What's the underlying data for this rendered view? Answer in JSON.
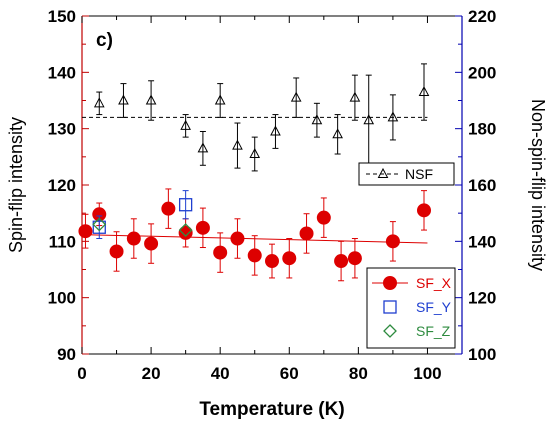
{
  "chart_data": {
    "type": "scatter",
    "panel_label": "c)",
    "xlabel": "Temperature (K)",
    "ylabel": "Spin-flip intensity",
    "y2label": "Non-spin-flip intensity",
    "xlim": [
      0,
      110
    ],
    "ylim": [
      90,
      150
    ],
    "y2lim": [
      100,
      220
    ],
    "xticks": [
      0,
      20,
      40,
      60,
      80,
      100
    ],
    "yticks": [
      90,
      100,
      110,
      120,
      130,
      140,
      150
    ],
    "y2ticks": [
      100,
      120,
      140,
      160,
      180,
      200,
      220
    ],
    "grid": false,
    "colors": {
      "left_axis": "#c00000",
      "right_axis": "#0000b0",
      "sf_x": "#dd0000",
      "sf_y": "#1f3fd0",
      "sf_z": "#2e8b3f",
      "nsf": "#000000",
      "frame": "#000000"
    },
    "series": [
      {
        "name": "NSF",
        "axis": "right",
        "marker": "triangle-open",
        "x": [
          5,
          12,
          20,
          30,
          35,
          40,
          45,
          50,
          56,
          62,
          68,
          74,
          79,
          83,
          90,
          99
        ],
        "y": [
          189,
          190,
          190,
          181,
          173,
          190,
          174,
          171,
          179,
          191,
          183,
          178,
          191,
          183,
          184,
          193
        ],
        "err": [
          4,
          6,
          7,
          4,
          6,
          6,
          8,
          6,
          6,
          7,
          6,
          7,
          8,
          16,
          8,
          10
        ]
      },
      {
        "name": "NSF fit",
        "axis": "right",
        "line": "dashed",
        "x": [
          0,
          100
        ],
        "y": [
          184,
          184
        ]
      },
      {
        "name": "SF_X",
        "axis": "left",
        "marker": "circle-filled",
        "x": [
          1,
          5,
          10,
          15,
          20,
          25,
          30,
          35,
          40,
          45,
          50,
          55,
          60,
          65,
          70,
          75,
          79,
          90,
          99
        ],
        "y": [
          111.8,
          114.8,
          108.2,
          110.5,
          109.6,
          115.8,
          111.5,
          112.4,
          108.0,
          110.5,
          107.5,
          106.5,
          107.0,
          111.4,
          114.2,
          106.5,
          107.0,
          110.0,
          115.5
        ],
        "err": [
          3,
          2,
          3.5,
          3.5,
          3.5,
          3.5,
          2.5,
          3.5,
          3.5,
          3.5,
          3.5,
          3,
          3.5,
          3.5,
          3.5,
          3.5,
          3.5,
          3.5,
          3.5
        ]
      },
      {
        "name": "SF_X fit",
        "axis": "left",
        "line": "solid",
        "x": [
          0,
          100
        ],
        "y": [
          111.2,
          109.7
        ]
      },
      {
        "name": "SF_Y",
        "axis": "left",
        "marker": "square-open",
        "x": [
          5,
          30
        ],
        "y": [
          112.5,
          116.5
        ],
        "err": [
          2,
          2.5
        ]
      },
      {
        "name": "SF_Z",
        "axis": "left",
        "marker": "diamond-open",
        "x": [
          5,
          30
        ],
        "y": [
          113.0,
          112.0
        ],
        "err": [
          0,
          0
        ]
      }
    ],
    "legends": [
      {
        "position": "middle-right",
        "entries": [
          "NSF"
        ]
      },
      {
        "position": "bottom-right",
        "entries": [
          "SF_X",
          "SF_Y",
          "SF_Z"
        ]
      }
    ]
  }
}
